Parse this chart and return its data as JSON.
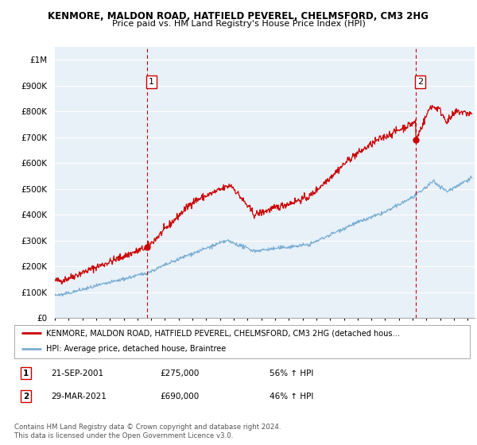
{
  "title": "KENMORE, MALDON ROAD, HATFIELD PEVEREL, CHELMSFORD, CM3 2HG",
  "subtitle": "Price paid vs. HM Land Registry's House Price Index (HPI)",
  "ylim": [
    0,
    1050000
  ],
  "yticks": [
    0,
    100000,
    200000,
    300000,
    400000,
    500000,
    600000,
    700000,
    800000,
    900000,
    1000000
  ],
  "ytick_labels": [
    "£0",
    "£100K",
    "£200K",
    "£300K",
    "£400K",
    "£500K",
    "£600K",
    "£700K",
    "£800K",
    "£900K",
    "£1M"
  ],
  "sale1_date": 2001.72,
  "sale1_price": 275000,
  "sale2_date": 2021.24,
  "sale2_price": 690000,
  "red_line_color": "#cc0000",
  "blue_line_color": "#7bafd4",
  "dashed_line_color": "#cc0000",
  "marker_color": "#cc0000",
  "background_color": "#ffffff",
  "chart_bg_color": "#e8f0f8",
  "grid_color": "#ffffff",
  "legend_text_red": "KENMORE, MALDON ROAD, HATFIELD PEVEREL, CHELMSFORD, CM3 2HG (detached hous…",
  "legend_text_blue": "HPI: Average price, detached house, Braintree",
  "annotation1_date": "21-SEP-2001",
  "annotation1_price": "£275,000",
  "annotation1_pct": "56% ↑ HPI",
  "annotation2_date": "29-MAR-2021",
  "annotation2_price": "£690,000",
  "annotation2_pct": "46% ↑ HPI",
  "footnote": "Contains HM Land Registry data © Crown copyright and database right 2024.\nThis data is licensed under the Open Government Licence v3.0.",
  "xmin": 1995,
  "xmax": 2025.5
}
